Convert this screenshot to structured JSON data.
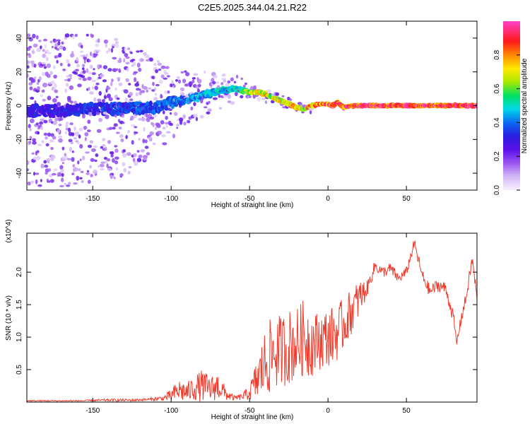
{
  "title": "C2E5.2025.344.04.21.R22",
  "chart_data": [
    {
      "type": "heatmap",
      "xlabel": "Height of straight line (km)",
      "ylabel": "Frequency (Hz)",
      "xlim": [
        -192,
        95
      ],
      "ylim": [
        -50,
        50
      ],
      "xticks": [
        -150,
        -100,
        -50,
        0,
        50
      ],
      "yticks": [
        -40,
        -20,
        0,
        20,
        40
      ],
      "grid": false,
      "colorbar": {
        "label": "Normalized spectral amplitude",
        "ticks": [
          0.0,
          0.2,
          0.4,
          0.6,
          0.8
        ],
        "range": [
          0,
          1
        ],
        "colormap": [
          "#f7f0ff",
          "#d4b8f7",
          "#9a55f2",
          "#5a10e6",
          "#2a1fe0",
          "#0a6af0",
          "#00d8e8",
          "#00e060",
          "#a8e800",
          "#ffe800",
          "#ff8800",
          "#ff1a1a",
          "#ff40c8"
        ]
      },
      "ridge": {
        "x": [
          -192,
          -170,
          -150,
          -130,
          -110,
          -95,
          -80,
          -68,
          -58,
          -50,
          -45,
          -40,
          -35,
          -30,
          -25,
          -20,
          -15,
          -10,
          -5,
          0,
          3,
          6,
          10,
          15,
          30,
          60,
          95
        ],
        "y": [
          -3,
          -3,
          -2,
          -2,
          -1,
          3,
          6,
          9,
          10,
          8,
          8,
          7,
          5,
          3,
          1,
          -1,
          -2,
          0,
          1,
          1,
          0,
          2,
          -1,
          0,
          0,
          0,
          0
        ],
        "peak_amplitude": [
          0.35,
          0.35,
          0.38,
          0.4,
          0.42,
          0.45,
          0.5,
          0.55,
          0.58,
          0.7,
          0.8,
          0.82,
          0.78,
          0.8,
          0.85,
          0.85,
          0.8,
          0.9,
          0.92,
          0.95,
          0.95,
          0.9,
          0.95,
          0.98,
          1.0,
          1.0,
          1.0
        ],
        "noise_spread_hz": [
          45,
          45,
          44,
          40,
          28,
          18,
          14,
          10,
          8,
          6,
          5,
          5,
          4,
          4,
          3,
          3,
          3,
          3,
          2,
          2,
          2,
          2,
          2,
          2,
          2,
          2,
          2
        ]
      }
    },
    {
      "type": "line",
      "xlabel": "Height of straight line (km)",
      "ylabel": "SNR (10 * v/v)",
      "y_multiplier": "(x10^4)",
      "xlim": [
        -192,
        95
      ],
      "ylim": [
        0,
        2.6
      ],
      "xticks": [
        -150,
        -100,
        -50,
        0,
        50
      ],
      "yticks": [
        0.5,
        1.0,
        1.5,
        2.0
      ],
      "grid": false,
      "series": [
        {
          "color": "#f03c2d",
          "x": [
            -192,
            -175,
            -160,
            -140,
            -125,
            -115,
            -105,
            -100,
            -95,
            -90,
            -85,
            -80,
            -75,
            -70,
            -65,
            -60,
            -55,
            -50,
            -45,
            -40,
            -35,
            -30,
            -25,
            -20,
            -15,
            -12,
            -10,
            -5,
            0,
            5,
            10,
            15,
            20,
            25,
            30,
            35,
            40,
            45,
            50,
            55,
            60,
            65,
            70,
            75,
            80,
            82,
            85,
            88,
            92,
            95
          ],
          "y": [
            0.02,
            0.02,
            0.02,
            0.03,
            0.03,
            0.04,
            0.06,
            0.1,
            0.18,
            0.15,
            0.22,
            0.25,
            0.2,
            0.25,
            0.12,
            0.06,
            0.08,
            0.15,
            0.35,
            0.6,
            0.75,
            0.8,
            0.85,
            0.9,
            1.0,
            0.95,
            0.9,
            0.95,
            1.0,
            1.05,
            1.2,
            1.4,
            1.6,
            1.75,
            2.1,
            2.0,
            2.05,
            1.9,
            2.0,
            2.45,
            1.95,
            1.7,
            1.8,
            1.75,
            1.3,
            0.9,
            1.3,
            1.6,
            2.2,
            1.6
          ],
          "spread": [
            0.01,
            0.01,
            0.01,
            0.02,
            0.02,
            0.02,
            0.04,
            0.1,
            0.18,
            0.15,
            0.2,
            0.25,
            0.2,
            0.22,
            0.1,
            0.04,
            0.05,
            0.12,
            0.35,
            0.55,
            0.6,
            0.55,
            0.6,
            0.55,
            0.6,
            0.6,
            0.5,
            0.45,
            0.45,
            0.45,
            0.4,
            0.35,
            0.3,
            0.12,
            0.1,
            0.08,
            0.1,
            0.08,
            0.08,
            0.08,
            0.1,
            0.1,
            0.1,
            0.1,
            0.1,
            0.05,
            0.1,
            0.1,
            0.1,
            0.1
          ]
        }
      ]
    }
  ]
}
